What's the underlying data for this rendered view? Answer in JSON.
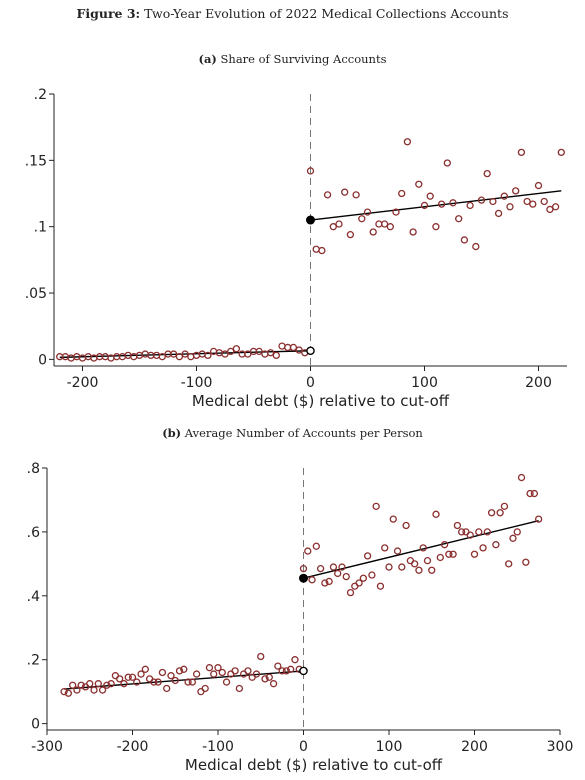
{
  "figure": {
    "label": "Figure 3:",
    "title": "Two-Year Evolution of 2022 Medical Collections Accounts"
  },
  "chart_data": [
    {
      "type": "scatter",
      "panel_label": "(a)",
      "title": "Share of Surviving Accounts",
      "xlabel": "Medical debt ($) relative to cut-off",
      "ylabel": "",
      "xlim": [
        -225,
        225
      ],
      "ylim": [
        -0.005,
        0.2
      ],
      "xticks": [
        -200,
        -100,
        0,
        100,
        200
      ],
      "xtick_labels": [
        "-200",
        "-100",
        "0",
        "100",
        "200"
      ],
      "yticks": [
        0,
        0.05,
        0.1,
        0.15,
        0.2
      ],
      "ytick_labels": [
        "0",
        ".05",
        ".1",
        ".15",
        ".2"
      ],
      "cutoff": 0,
      "grid": false,
      "marker_color": "#8b2e2e",
      "line_color": "#000000",
      "points": [
        [
          -220,
          0.002
        ],
        [
          -215,
          0.002
        ],
        [
          -210,
          0.001
        ],
        [
          -205,
          0.002
        ],
        [
          -200,
          0.001
        ],
        [
          -195,
          0.002
        ],
        [
          -190,
          0.001
        ],
        [
          -185,
          0.002
        ],
        [
          -180,
          0.002
        ],
        [
          -175,
          0.001
        ],
        [
          -170,
          0.002
        ],
        [
          -165,
          0.002
        ],
        [
          -160,
          0.003
        ],
        [
          -155,
          0.002
        ],
        [
          -150,
          0.003
        ],
        [
          -145,
          0.004
        ],
        [
          -140,
          0.003
        ],
        [
          -135,
          0.003
        ],
        [
          -130,
          0.002
        ],
        [
          -125,
          0.004
        ],
        [
          -120,
          0.004
        ],
        [
          -115,
          0.002
        ],
        [
          -110,
          0.004
        ],
        [
          -105,
          0.002
        ],
        [
          -100,
          0.003
        ],
        [
          -95,
          0.004
        ],
        [
          -90,
          0.003
        ],
        [
          -85,
          0.006
        ],
        [
          -80,
          0.005
        ],
        [
          -75,
          0.004
        ],
        [
          -70,
          0.006
        ],
        [
          -65,
          0.008
        ],
        [
          -60,
          0.004
        ],
        [
          -55,
          0.004
        ],
        [
          -50,
          0.006
        ],
        [
          -45,
          0.006
        ],
        [
          -40,
          0.004
        ],
        [
          -35,
          0.005
        ],
        [
          -30,
          0.003
        ],
        [
          -25,
          0.01
        ],
        [
          -20,
          0.009
        ],
        [
          -15,
          0.009
        ],
        [
          -10,
          0.007
        ],
        [
          -5,
          0.005
        ],
        [
          0,
          0.142
        ],
        [
          5,
          0.083
        ],
        [
          10,
          0.082
        ],
        [
          15,
          0.124
        ],
        [
          20,
          0.1
        ],
        [
          25,
          0.102
        ],
        [
          30,
          0.126
        ],
        [
          35,
          0.094
        ],
        [
          40,
          0.124
        ],
        [
          45,
          0.106
        ],
        [
          50,
          0.111
        ],
        [
          55,
          0.096
        ],
        [
          60,
          0.102
        ],
        [
          65,
          0.102
        ],
        [
          70,
          0.1
        ],
        [
          75,
          0.111
        ],
        [
          80,
          0.125
        ],
        [
          85,
          0.164
        ],
        [
          90,
          0.096
        ],
        [
          95,
          0.132
        ],
        [
          100,
          0.116
        ],
        [
          105,
          0.123
        ],
        [
          110,
          0.1
        ],
        [
          115,
          0.117
        ],
        [
          120,
          0.148
        ],
        [
          125,
          0.118
        ],
        [
          130,
          0.106
        ],
        [
          135,
          0.09
        ],
        [
          140,
          0.116
        ],
        [
          145,
          0.085
        ],
        [
          150,
          0.12
        ],
        [
          155,
          0.14
        ],
        [
          160,
          0.119
        ],
        [
          165,
          0.11
        ],
        [
          170,
          0.123
        ],
        [
          175,
          0.115
        ],
        [
          180,
          0.127
        ],
        [
          185,
          0.156
        ],
        [
          190,
          0.119
        ],
        [
          195,
          0.117
        ],
        [
          200,
          0.131
        ],
        [
          205,
          0.119
        ],
        [
          210,
          0.113
        ],
        [
          215,
          0.115
        ],
        [
          220,
          0.156
        ]
      ],
      "fit_left": {
        "x": [
          -220,
          0
        ],
        "y": [
          0.0015,
          0.0065
        ]
      },
      "fit_right": {
        "x": [
          0,
          220
        ],
        "y": [
          0.105,
          0.127
        ]
      },
      "discontinuity": {
        "left": 0.0065,
        "right": 0.105
      }
    },
    {
      "type": "scatter",
      "panel_label": "(b)",
      "title": "Average Number of Accounts per Person",
      "xlabel": "Medical debt ($) relative to cut-off",
      "ylabel": "",
      "xlim": [
        -300,
        300
      ],
      "ylim": [
        -0.02,
        0.8
      ],
      "xticks": [
        -300,
        -200,
        -100,
        0,
        100,
        200,
        300
      ],
      "xtick_labels": [
        "-300",
        "-200",
        "-100",
        "0",
        "100",
        "200",
        "300"
      ],
      "yticks": [
        0,
        0.2,
        0.4,
        0.6,
        0.8
      ],
      "ytick_labels": [
        "0",
        ".2",
        ".4",
        ".6",
        ".8"
      ],
      "cutoff": 0,
      "grid": false,
      "marker_color": "#8b2e2e",
      "line_color": "#000000",
      "points": [
        [
          -280,
          0.1
        ],
        [
          -275,
          0.095
        ],
        [
          -270,
          0.12
        ],
        [
          -265,
          0.105
        ],
        [
          -260,
          0.12
        ],
        [
          -255,
          0.115
        ],
        [
          -250,
          0.125
        ],
        [
          -245,
          0.105
        ],
        [
          -240,
          0.125
        ],
        [
          -235,
          0.105
        ],
        [
          -230,
          0.12
        ],
        [
          -225,
          0.125
        ],
        [
          -220,
          0.15
        ],
        [
          -215,
          0.14
        ],
        [
          -210,
          0.125
        ],
        [
          -205,
          0.145
        ],
        [
          -200,
          0.145
        ],
        [
          -195,
          0.13
        ],
        [
          -190,
          0.155
        ],
        [
          -185,
          0.17
        ],
        [
          -180,
          0.14
        ],
        [
          -175,
          0.13
        ],
        [
          -170,
          0.13
        ],
        [
          -165,
          0.16
        ],
        [
          -160,
          0.11
        ],
        [
          -155,
          0.15
        ],
        [
          -150,
          0.135
        ],
        [
          -145,
          0.165
        ],
        [
          -140,
          0.17
        ],
        [
          -135,
          0.13
        ],
        [
          -130,
          0.13
        ],
        [
          -125,
          0.155
        ],
        [
          -120,
          0.1
        ],
        [
          -115,
          0.11
        ],
        [
          -110,
          0.175
        ],
        [
          -105,
          0.155
        ],
        [
          -100,
          0.175
        ],
        [
          -95,
          0.16
        ],
        [
          -90,
          0.13
        ],
        [
          -85,
          0.155
        ],
        [
          -80,
          0.165
        ],
        [
          -75,
          0.11
        ],
        [
          -70,
          0.155
        ],
        [
          -65,
          0.165
        ],
        [
          -60,
          0.145
        ],
        [
          -55,
          0.155
        ],
        [
          -50,
          0.21
        ],
        [
          -45,
          0.14
        ],
        [
          -40,
          0.145
        ],
        [
          -35,
          0.125
        ],
        [
          -30,
          0.18
        ],
        [
          -25,
          0.165
        ],
        [
          -20,
          0.165
        ],
        [
          -15,
          0.17
        ],
        [
          -10,
          0.2
        ],
        [
          -5,
          0.17
        ],
        [
          0,
          0.485
        ],
        [
          5,
          0.54
        ],
        [
          10,
          0.45
        ],
        [
          15,
          0.555
        ],
        [
          20,
          0.485
        ],
        [
          25,
          0.44
        ],
        [
          30,
          0.445
        ],
        [
          35,
          0.49
        ],
        [
          40,
          0.47
        ],
        [
          45,
          0.49
        ],
        [
          50,
          0.46
        ],
        [
          55,
          0.41
        ],
        [
          60,
          0.43
        ],
        [
          65,
          0.44
        ],
        [
          70,
          0.455
        ],
        [
          75,
          0.525
        ],
        [
          80,
          0.465
        ],
        [
          85,
          0.68
        ],
        [
          90,
          0.43
        ],
        [
          95,
          0.55
        ],
        [
          100,
          0.49
        ],
        [
          105,
          0.64
        ],
        [
          110,
          0.54
        ],
        [
          115,
          0.49
        ],
        [
          120,
          0.62
        ],
        [
          125,
          0.51
        ],
        [
          130,
          0.5
        ],
        [
          135,
          0.48
        ],
        [
          140,
          0.55
        ],
        [
          145,
          0.51
        ],
        [
          150,
          0.48
        ],
        [
          155,
          0.655
        ],
        [
          160,
          0.52
        ],
        [
          165,
          0.56
        ],
        [
          170,
          0.53
        ],
        [
          175,
          0.53
        ],
        [
          180,
          0.62
        ],
        [
          185,
          0.6
        ],
        [
          190,
          0.6
        ],
        [
          195,
          0.59
        ],
        [
          200,
          0.53
        ],
        [
          205,
          0.6
        ],
        [
          210,
          0.55
        ],
        [
          215,
          0.6
        ],
        [
          220,
          0.66
        ],
        [
          225,
          0.56
        ],
        [
          230,
          0.66
        ],
        [
          235,
          0.68
        ],
        [
          240,
          0.5
        ],
        [
          245,
          0.58
        ],
        [
          250,
          0.6
        ],
        [
          255,
          0.77
        ],
        [
          260,
          0.505
        ],
        [
          265,
          0.72
        ],
        [
          270,
          0.72
        ],
        [
          275,
          0.64
        ]
      ],
      "fit_left": {
        "x": [
          -280,
          0
        ],
        "y": [
          0.108,
          0.165
        ]
      },
      "fit_right": {
        "x": [
          0,
          275
        ],
        "y": [
          0.455,
          0.635
        ]
      },
      "discontinuity": {
        "left": 0.165,
        "right": 0.455
      }
    }
  ]
}
